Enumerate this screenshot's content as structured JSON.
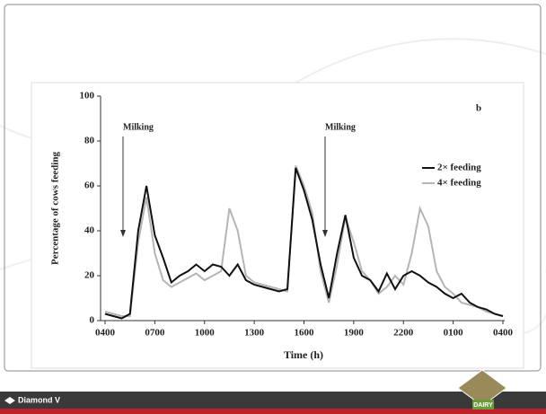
{
  "chart_data": {
    "type": "line",
    "x_label": "Time (h)",
    "y_label": "Percentage of cows feeding",
    "panel_label": "b",
    "annotations": [
      "Milking",
      "Milking"
    ],
    "footer": {
      "brand": "Diamond V",
      "logo": "DAIRY"
    },
    "xlim": [
      0,
      24
    ],
    "xticks": [
      {
        "value": 0,
        "label": "0400"
      },
      {
        "value": 3,
        "label": "0700"
      },
      {
        "value": 6,
        "label": "1000"
      },
      {
        "value": 9,
        "label": "1300"
      },
      {
        "value": 12,
        "label": "1600"
      },
      {
        "value": 15,
        "label": "1900"
      },
      {
        "value": 18,
        "label": "2200"
      },
      {
        "value": 21,
        "label": "0100"
      },
      {
        "value": 24,
        "label": "0400"
      }
    ],
    "ylim": [
      0,
      100
    ],
    "yticks": [
      0,
      20,
      40,
      60,
      80,
      100
    ],
    "x": [
      0,
      0.5,
      1,
      1.5,
      2,
      2.5,
      3,
      3.5,
      4,
      4.5,
      5,
      5.5,
      6,
      6.5,
      7,
      7.5,
      8,
      8.5,
      9,
      9.5,
      10,
      10.5,
      11,
      11.5,
      12,
      12.5,
      13,
      13.5,
      14,
      14.5,
      15,
      15.5,
      16,
      16.5,
      17,
      17.5,
      18,
      18.5,
      19,
      19.5,
      20,
      20.5,
      21,
      21.5,
      22,
      22.5,
      23,
      23.5,
      24
    ],
    "series": [
      {
        "name": "2× feeding",
        "color": "#111111",
        "values": [
          3,
          2,
          1,
          3,
          40,
          60,
          38,
          28,
          17,
          20,
          22,
          25,
          22,
          25,
          24,
          20,
          25,
          18,
          16,
          15,
          14,
          13,
          14,
          68,
          58,
          45,
          25,
          10,
          30,
          47,
          28,
          20,
          18,
          13,
          21,
          14,
          20,
          22,
          20,
          17,
          15,
          12,
          10,
          12,
          8,
          6,
          5,
          3,
          2
        ]
      },
      {
        "name": "4× feeding",
        "color": "#b5b5b5",
        "values": [
          4,
          3,
          2,
          2,
          35,
          55,
          30,
          18,
          15,
          17,
          19,
          21,
          18,
          20,
          22,
          50,
          40,
          20,
          17,
          16,
          15,
          14,
          13,
          69,
          60,
          48,
          22,
          8,
          25,
          46,
          35,
          22,
          18,
          12,
          15,
          20,
          16,
          30,
          50,
          42,
          22,
          15,
          12,
          8,
          7,
          6,
          4,
          3,
          2
        ]
      }
    ],
    "legend": "upper right"
  }
}
